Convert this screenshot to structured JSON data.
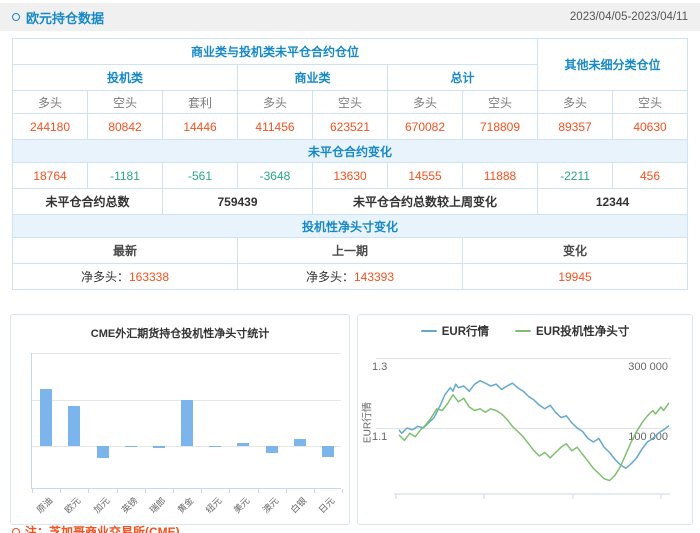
{
  "header": {
    "title": "欧元持仓数据",
    "date_range": "2023/04/05-2023/04/11"
  },
  "table": {
    "group_main": "商业类与投机类未平仓合约仓位",
    "group_other": "其他未细分类仓位",
    "cat_cols": [
      "投机类",
      "商业类",
      "总计"
    ],
    "position_cols": [
      "多头",
      "空头",
      "套利",
      "多头",
      "空头",
      "多头",
      "空头",
      "多头",
      "空头"
    ],
    "positions": [
      "244180",
      "80842",
      "14446",
      "411456",
      "623521",
      "670082",
      "718809",
      "89357",
      "40630"
    ],
    "oi_change_header": "未平仓合约变化",
    "oi_changes": [
      "18764",
      "-1181",
      "-561",
      "-3648",
      "13630",
      "14555",
      "11888",
      "-2211",
      "456"
    ],
    "total_label": "未平仓合约总数",
    "total_value": "759439",
    "weekly_change_label": "未平仓合约总数较上周变化",
    "weekly_change_value": "12344",
    "net_header": "投机性净头寸变化",
    "net_cols": [
      "最新",
      "上一期",
      "变化"
    ],
    "net_latest_label": "净多头：",
    "net_latest_value": "163338",
    "net_prev_label": "净多头：",
    "net_prev_value": "143393",
    "net_change_value": "19945"
  },
  "chart_data": [
    {
      "type": "bar",
      "title": "CME外汇期货持仓投机性净头寸统计",
      "categories": [
        "原油",
        "欧元",
        "加元",
        "英镑",
        "瑞郎",
        "黄金",
        "纽元",
        "美元",
        "澳元",
        "白银",
        "日元"
      ],
      "values": [
        235000,
        163338,
        -50000,
        -1500,
        -6000,
        190000,
        -3000,
        13000,
        -30000,
        31000,
        -46000
      ],
      "xlabel": "",
      "ylabel": "",
      "ylim": [
        -175000,
        380000
      ],
      "grid": true,
      "bar_color": "#7cb5ec",
      "y_axis_labels": "hidden"
    },
    {
      "type": "line",
      "title": "",
      "legend_position": "top",
      "left_axis": {
        "title": "EUR行情",
        "ticks": [
          1.3,
          1.1
        ],
        "labels": [
          "1.3",
          "1.1"
        ]
      },
      "right_axis": {
        "title": "",
        "ticks": [
          300000,
          100000
        ],
        "labels": [
          "300 000",
          "100 000"
        ]
      },
      "series": [
        {
          "name": "EUR行情",
          "color": "#64a8d1",
          "axis": "left",
          "points": [
            [
              0,
              1.095
            ],
            [
              1,
              1.085
            ],
            [
              3,
              1.1
            ],
            [
              5,
              1.095
            ],
            [
              7,
              1.105
            ],
            [
              9,
              1.1
            ],
            [
              11,
              1.115
            ],
            [
              13,
              1.13
            ],
            [
              15,
              1.16
            ],
            [
              17,
              1.195
            ],
            [
              19,
              1.215
            ],
            [
              20,
              1.205
            ],
            [
              21,
              1.225
            ],
            [
              22,
              1.215
            ],
            [
              24,
              1.22
            ],
            [
              26,
              1.205
            ],
            [
              28,
              1.225
            ],
            [
              30,
              1.235
            ],
            [
              32,
              1.228
            ],
            [
              34,
              1.22
            ],
            [
              36,
              1.225
            ],
            [
              38,
              1.21
            ],
            [
              40,
              1.22
            ],
            [
              42,
              1.228
            ],
            [
              44,
              1.215
            ],
            [
              46,
              1.205
            ],
            [
              48,
              1.19
            ],
            [
              50,
              1.18
            ],
            [
              52,
              1.165
            ],
            [
              54,
              1.155
            ],
            [
              56,
              1.165
            ],
            [
              58,
              1.145
            ],
            [
              60,
              1.13
            ],
            [
              62,
              1.135
            ],
            [
              64,
              1.115
            ],
            [
              66,
              1.1
            ],
            [
              68,
              1.09
            ],
            [
              70,
              1.07
            ],
            [
              72,
              1.06
            ],
            [
              74,
              1.07
            ],
            [
              76,
              1.045
            ],
            [
              78,
              1.03
            ],
            [
              80,
              1.01
            ],
            [
              82,
              0.995
            ],
            [
              84,
              0.985
            ],
            [
              86,
              0.998
            ],
            [
              88,
              1.015
            ],
            [
              90,
              1.04
            ],
            [
              92,
              1.06
            ],
            [
              94,
              1.07
            ],
            [
              96,
              1.085
            ],
            [
              98,
              1.095
            ],
            [
              100,
              1.107
            ]
          ]
        },
        {
          "name": "EUR投机性净头寸",
          "color": "#7fbf6f",
          "axis": "right",
          "points": [
            [
              0,
              80000
            ],
            [
              2,
              65000
            ],
            [
              4,
              85000
            ],
            [
              6,
              75000
            ],
            [
              8,
              95000
            ],
            [
              10,
              110000
            ],
            [
              12,
              130000
            ],
            [
              14,
              155000
            ],
            [
              16,
              150000
            ],
            [
              18,
              170000
            ],
            [
              20,
              195000
            ],
            [
              22,
              175000
            ],
            [
              24,
              185000
            ],
            [
              26,
              160000
            ],
            [
              28,
              150000
            ],
            [
              30,
              155000
            ],
            [
              32,
              145000
            ],
            [
              34,
              155000
            ],
            [
              36,
              150000
            ],
            [
              38,
              140000
            ],
            [
              40,
              125000
            ],
            [
              42,
              105000
            ],
            [
              44,
              90000
            ],
            [
              46,
              75000
            ],
            [
              48,
              55000
            ],
            [
              50,
              35000
            ],
            [
              52,
              20000
            ],
            [
              54,
              30000
            ],
            [
              56,
              15000
            ],
            [
              58,
              30000
            ],
            [
              60,
              45000
            ],
            [
              62,
              55000
            ],
            [
              64,
              35000
            ],
            [
              66,
              45000
            ],
            [
              68,
              25000
            ],
            [
              70,
              5000
            ],
            [
              72,
              -15000
            ],
            [
              74,
              -30000
            ],
            [
              76,
              -45000
            ],
            [
              78,
              -50000
            ],
            [
              80,
              -35000
            ],
            [
              82,
              -10000
            ],
            [
              84,
              25000
            ],
            [
              86,
              60000
            ],
            [
              88,
              90000
            ],
            [
              90,
              115000
            ],
            [
              92,
              135000
            ],
            [
              94,
              150000
            ],
            [
              95,
              140000
            ],
            [
              97,
              160000
            ],
            [
              98,
              150000
            ],
            [
              100,
              172000
            ]
          ]
        }
      ]
    }
  ],
  "footer": {
    "note": "注：芝加哥商业交易所(CME)"
  },
  "colors": {
    "accent_blue": "#1789c7",
    "value_red": "#f4511e",
    "value_green": "#27a883",
    "band_bg": "#e9f3fb",
    "table_border": "#cfe2f1",
    "bar_color": "#7cb5ec",
    "line_blue": "#64a8d1",
    "line_green": "#7fbf6f"
  }
}
